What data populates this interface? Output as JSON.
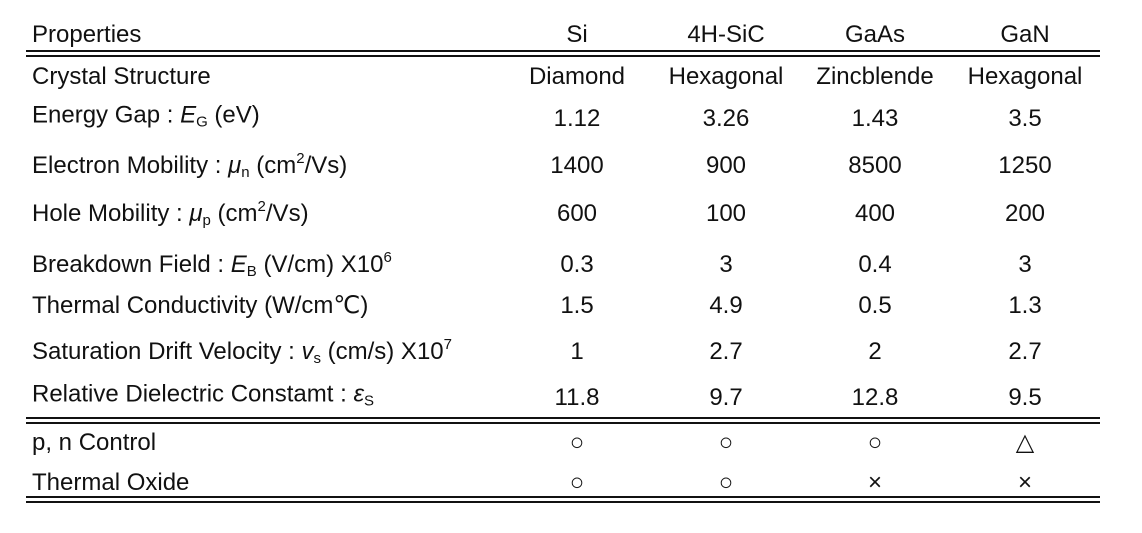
{
  "table": {
    "header": [
      "Properties",
      "Si",
      "4H-SiC",
      "GaAs",
      "GaN"
    ],
    "rows": [
      {
        "label": [
          "Crystal Structure"
        ],
        "values": [
          "Diamond",
          "Hexagonal",
          "Zincblende",
          "Hexagonal"
        ]
      },
      {
        "label": [
          "Energy Gap : ",
          "E",
          "G",
          " (eV)"
        ],
        "values": [
          1.12,
          3.26,
          1.43,
          3.5
        ]
      },
      {
        "label": [
          "Electron Mobility : ",
          "μ",
          "n",
          " (cm",
          "2",
          "/Vs)"
        ],
        "values": [
          1400,
          900,
          8500,
          1250
        ]
      },
      {
        "label": [
          "Hole Mobility : ",
          "μ",
          "p",
          " (cm",
          "2",
          "/Vs)"
        ],
        "values": [
          600,
          100,
          400,
          200
        ]
      },
      {
        "label": [
          "Breakdown Field : ",
          "E",
          "B",
          " (V/cm) X10",
          "6"
        ],
        "values": [
          0.3,
          3,
          0.4,
          3
        ]
      },
      {
        "label": [
          "Thermal Conductivity (W/cm℃)"
        ],
        "values": [
          1.5,
          4.9,
          0.5,
          1.3
        ]
      },
      {
        "label": [
          "Saturation Drift Velocity : ",
          "v",
          "s",
          " (cm/s) X10",
          "7"
        ],
        "values": [
          1,
          2.7,
          2,
          2.7
        ]
      },
      {
        "label": [
          "Relative Dielectric Constamt : ",
          "ε",
          "S"
        ],
        "values": [
          11.8,
          9.7,
          12.8,
          9.5
        ]
      },
      {
        "label": [
          "p, n Control"
        ],
        "values": [
          "○",
          "○",
          "○",
          "△"
        ]
      },
      {
        "label": [
          "Thermal Oxide"
        ],
        "values": [
          "○",
          "○",
          "×",
          "×"
        ]
      }
    ]
  }
}
